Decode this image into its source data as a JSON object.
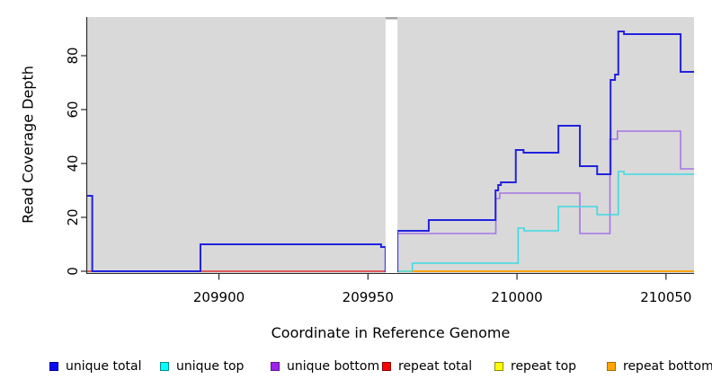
{
  "figure_name": "read-coverage-depth-plot",
  "chart_data": {
    "type": "line",
    "step": true,
    "title": "",
    "xlabel": "Coordinate in Reference Genome",
    "ylabel": "Read Coverage Depth",
    "xlim": [
      209855.8,
      210059.4
    ],
    "ylim": [
      0,
      94
    ],
    "x_ticks": [
      209900,
      209950,
      210000,
      210050
    ],
    "y_ticks": [
      0,
      20,
      40,
      60,
      80
    ],
    "grid": false,
    "legend_position": "bottom",
    "plot_background": "#D9D9D9",
    "gap_region": {
      "from": 209955.9,
      "to": 209959.9,
      "fill": "#FFFFFF",
      "cap_color": "#A5A5A5"
    },
    "series": [
      {
        "name": "unique total",
        "z": 4,
        "line_color": "#2222DD",
        "legend_fill": "#0A0AF5",
        "legend_border": "#00008B",
        "segments": [
          [
            209855.8,
            209857.5,
            28
          ],
          [
            209857.5,
            209893.8,
            0
          ],
          [
            209893.8,
            209954.4,
            10
          ],
          [
            209954.4,
            209955.9,
            9
          ],
          [
            209955.9,
            209959.9,
            0
          ],
          [
            209959.9,
            209970.4,
            15
          ],
          [
            209970.4,
            209992.8,
            19
          ],
          [
            209992.8,
            209993.7,
            30
          ],
          [
            209993.7,
            209994.6,
            32
          ],
          [
            209994.6,
            209999.6,
            33
          ],
          [
            209999.6,
            210002.2,
            45
          ],
          [
            210002.2,
            210013.9,
            44
          ],
          [
            210013.9,
            210021.1,
            54
          ],
          [
            210021.1,
            210026.9,
            39
          ],
          [
            210026.9,
            210031.4,
            36
          ],
          [
            210031.4,
            210032.9,
            71
          ],
          [
            210032.9,
            210034.0,
            73
          ],
          [
            210034.0,
            210035.9,
            89
          ],
          [
            210035.9,
            210054.9,
            88
          ],
          [
            210054.9,
            210059.4,
            74
          ]
        ]
      },
      {
        "name": "unique top",
        "z": 3,
        "line_color": "#3FD9E3",
        "legend_fill": "#00FFFF",
        "legend_border": "#008B8B",
        "segments": [
          [
            209955.9,
            209964.9,
            0
          ],
          [
            209964.9,
            210000.4,
            3
          ],
          [
            210000.4,
            210002.4,
            16
          ],
          [
            210002.4,
            210013.9,
            15
          ],
          [
            210013.9,
            210026.9,
            24
          ],
          [
            210026.9,
            210034.0,
            21
          ],
          [
            210034.0,
            210035.9,
            37
          ],
          [
            210035.9,
            210059.4,
            36
          ]
        ]
      },
      {
        "name": "unique bottom",
        "z": 2,
        "line_color": "#A675E6",
        "legend_fill": "#A020F0",
        "legend_border": "#551A8B",
        "segments": [
          [
            209955.9,
            209959.9,
            0
          ],
          [
            209959.9,
            209992.9,
            14
          ],
          [
            209992.9,
            209994.2,
            27
          ],
          [
            209994.2,
            210021.1,
            29
          ],
          [
            210021.1,
            210031.2,
            14
          ],
          [
            210031.2,
            210033.7,
            49
          ],
          [
            210033.7,
            210054.9,
            52
          ],
          [
            210054.9,
            210059.4,
            38
          ]
        ]
      },
      {
        "name": "repeat total",
        "z": 0,
        "line_color": "#E03333",
        "legend_fill": "#FF0000",
        "legend_border": "#8B0000",
        "segments": [
          [
            209855.8,
            209955.9,
            0
          ]
        ]
      },
      {
        "name": "repeat top",
        "z": 1,
        "line_color": "#EEE800",
        "legend_fill": "#FFFF00",
        "legend_border": "#8B8B00",
        "segments": [
          [
            209955.9,
            210059.4,
            0
          ]
        ]
      },
      {
        "name": "repeat bottom",
        "z": 5,
        "line_color": "#FFA30F",
        "legend_fill": "#FFA500",
        "legend_border": "#A66A00",
        "segments": [
          [
            209964.9,
            210059.4,
            0
          ]
        ]
      }
    ]
  }
}
